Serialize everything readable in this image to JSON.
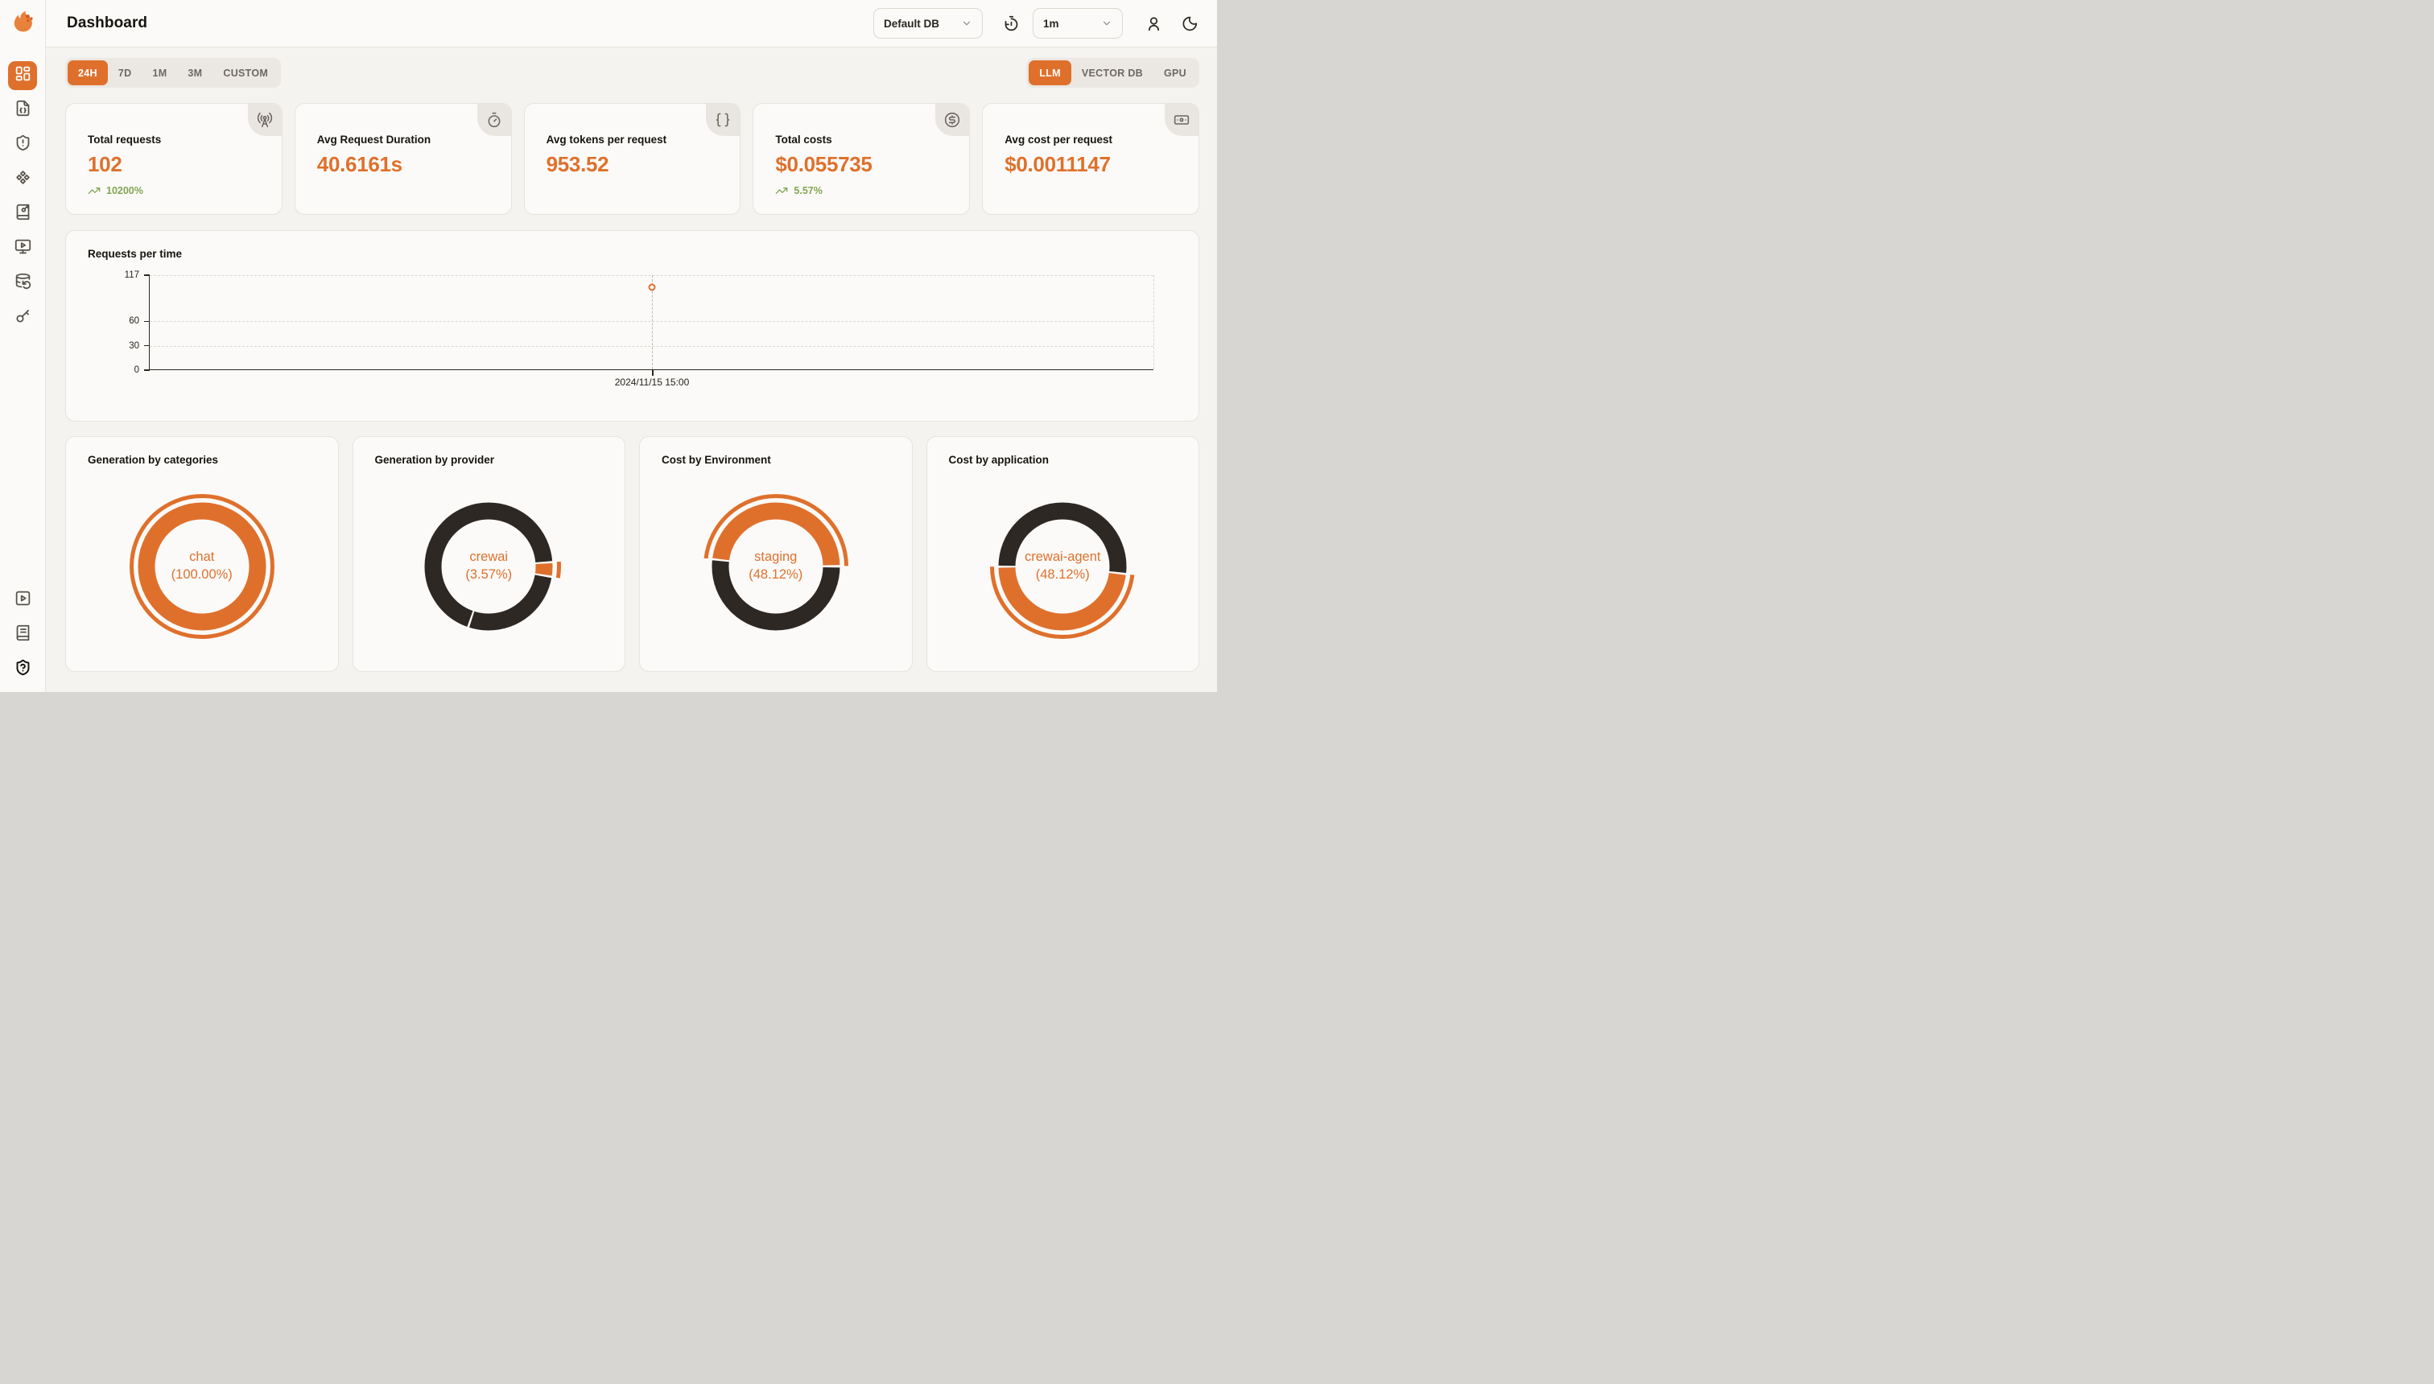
{
  "header": {
    "title": "Dashboard",
    "database_select": {
      "value": "Default DB",
      "icon": "chevron-down"
    },
    "interval_select": {
      "value": "1m",
      "icon": "chevron-down"
    }
  },
  "toolbar": {
    "time_range_tabs": [
      {
        "label": "24H",
        "active": true
      },
      {
        "label": "7D",
        "active": false
      },
      {
        "label": "1M",
        "active": false
      },
      {
        "label": "3M",
        "active": false
      },
      {
        "label": "CUSTOM",
        "active": false
      }
    ],
    "scope_tabs": [
      {
        "label": "LLM",
        "active": true
      },
      {
        "label": "VECTOR DB",
        "active": false
      },
      {
        "label": "GPU",
        "active": false
      }
    ]
  },
  "stats": [
    {
      "title": "Total requests",
      "value": "102",
      "trend": "10200%",
      "icon": "radio-tower"
    },
    {
      "title": "Avg Request Duration",
      "value": "40.6161s",
      "trend": "",
      "icon": "timer"
    },
    {
      "title": "Avg tokens per request",
      "value": "953.52",
      "trend": "",
      "icon": "braces"
    },
    {
      "title": "Total costs",
      "value": "$0.055735",
      "trend": "5.57%",
      "icon": "circle-dollar"
    },
    {
      "title": "Avg cost per request",
      "value": "$0.0011147",
      "trend": "",
      "icon": "banknote"
    }
  ],
  "chart_data": [
    {
      "type": "line",
      "title": "Requests per time",
      "xlabel": "",
      "ylabel": "",
      "ylim": [
        0,
        117
      ],
      "yticks": [
        0,
        30,
        60,
        117
      ],
      "grid": "dashed-horizontal, dashed top and right frame",
      "x": [
        "2024/11/15 15:00"
      ],
      "series": [
        {
          "name": "requests",
          "values": [
            102
          ]
        }
      ],
      "point_style": "hollow-orange-circle with dashed vertical crosshair"
    },
    {
      "type": "donut",
      "title": "Generation by categories",
      "center_label": "chat",
      "center_sub": "(100.00%)",
      "start_deg": 0,
      "slices": [
        {
          "label": "chat",
          "pct": 100,
          "color": "accent"
        }
      ],
      "highlight": "full-outer-ring"
    },
    {
      "type": "donut",
      "title": "Generation by provider",
      "center_label": "crewai",
      "center_sub": "(3.57%)",
      "start_deg": 86.5,
      "slices": [
        {
          "label": "crewai",
          "pct": 3.57,
          "color": "accent"
        },
        {
          "label": "",
          "pct": 27.6,
          "color": "dark"
        },
        {
          "label": "",
          "pct": 68.83,
          "color": "dark"
        }
      ],
      "highlight": "first-slice-outer-arc"
    },
    {
      "type": "donut",
      "title": "Cost by Environment",
      "center_label": "staging",
      "center_sub": "(48.12%)",
      "start_deg": 276.8,
      "slices": [
        {
          "label": "staging",
          "pct": 48.12,
          "color": "accent"
        },
        {
          "label": "",
          "pct": 51.88,
          "color": "dark"
        }
      ],
      "highlight": "first-slice-outer-arc"
    },
    {
      "type": "donut",
      "title": "Cost by application",
      "center_label": "crewai-agent",
      "center_sub": "(48.12%)",
      "start_deg": 96.8,
      "slices": [
        {
          "label": "crewai-agent",
          "pct": 48.12,
          "color": "accent"
        },
        {
          "label": "",
          "pct": 51.88,
          "color": "dark"
        }
      ],
      "highlight": "first-slice-outer-arc"
    }
  ],
  "sidebar": {
    "logo_icon": "flame-logo",
    "items": [
      {
        "icon": "layout-dashboard",
        "active": true
      },
      {
        "icon": "file-code",
        "active": false
      },
      {
        "icon": "shield-alert",
        "active": false
      },
      {
        "icon": "component",
        "active": false
      },
      {
        "icon": "book-key",
        "active": false
      },
      {
        "icon": "monitor-play",
        "active": false
      },
      {
        "icon": "database-backup",
        "active": false
      },
      {
        "icon": "key-round",
        "active": false
      }
    ],
    "bottom_items": [
      {
        "icon": "square-play",
        "active": false
      },
      {
        "icon": "book-text",
        "active": false
      },
      {
        "icon": "shield-question",
        "active": false
      }
    ]
  },
  "colors": {
    "accent": "#DF702C",
    "dark_slice": "#2E2824",
    "positive_green": "#83A551",
    "page_bg": "#F5F3EF",
    "panel_bg": "#FBFAF8",
    "logo_orange": "#E8823B",
    "logo_deep_orange": "#D75A20"
  }
}
